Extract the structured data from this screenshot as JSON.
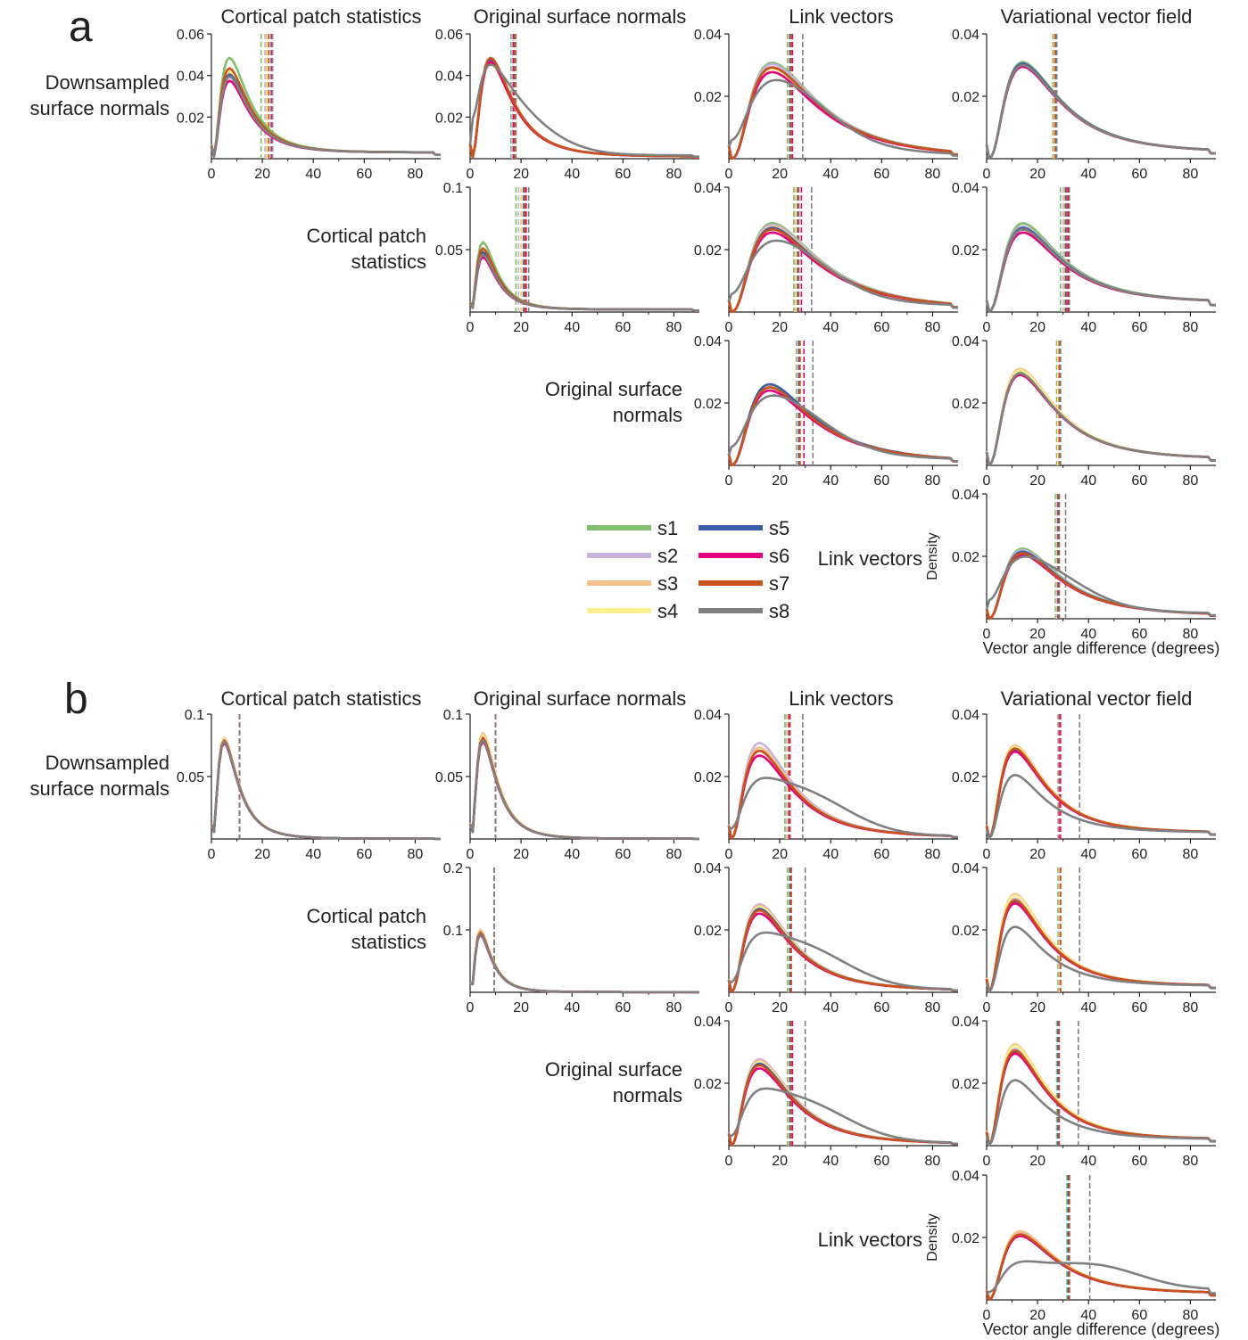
{
  "colors": {
    "s1": "#7fbf6a",
    "s2": "#c7b3dc",
    "s3": "#f7c08a",
    "s4": "#fbf08f",
    "s5": "#3a5ea8",
    "s6": "#e6007e",
    "s7": "#c8521a",
    "s8": "#808080",
    "axis": "#231f20"
  },
  "legend": {
    "entries": [
      "s1",
      "s2",
      "s3",
      "s4",
      "s5",
      "s6",
      "s7",
      "s8"
    ]
  },
  "chart_data": [
    {
      "panel_label": "a",
      "type": "line",
      "column_titles": [
        "Cortical patch statistics",
        "Original surface normals",
        "Link vectors",
        "Variational vector field"
      ],
      "row_labels": [
        "Downsampled surface normals",
        "Cortical patch statistics",
        "Original surface normals",
        "Link vectors"
      ],
      "xlabel": "Vector angle difference (degrees)",
      "ylabel": "Density",
      "xlim": [
        0,
        90
      ],
      "x_ticks": [
        0,
        20,
        40,
        60,
        80
      ],
      "subplots": [
        {
          "row": 0,
          "col": 0,
          "ylim": [
            0,
            0.06
          ],
          "y_ticks": [
            "0.02",
            "0.04",
            "0.06"
          ],
          "peak_x": 7,
          "peak_y": [
            0.047,
            0.039,
            0.04,
            0.041,
            0.039,
            0.036,
            0.042,
            0.038
          ],
          "tail_y": 0.003,
          "gray_shift": 0,
          "medians": [
            19.5,
            21,
            21.5,
            22,
            22.5,
            23.5,
            22.5,
            24
          ]
        },
        {
          "row": 0,
          "col": 1,
          "ylim": [
            0,
            0.06
          ],
          "y_ticks": [
            "0.02",
            "0.04",
            "0.06"
          ],
          "peak_x": 8,
          "peak_y": [
            0.048,
            0.047,
            0.046,
            0.045,
            0.047,
            0.046,
            0.048,
            0.044
          ],
          "tail_y": 0.001,
          "gray_shift": 1,
          "medians": [
            16,
            16.5,
            17,
            17,
            17.5,
            17,
            17.5,
            18
          ]
        },
        {
          "row": 0,
          "col": 2,
          "ylim": [
            0,
            0.04
          ],
          "y_ticks": [
            "0.02",
            "0.04"
          ],
          "peak_x": 17,
          "peak_y": [
            0.0305,
            0.03,
            0.029,
            0.0285,
            0.029,
            0.0275,
            0.029,
            0.025
          ],
          "tail_y": 0.0005,
          "gray_shift": 6,
          "medians": [
            23,
            23.5,
            23.5,
            24,
            24,
            25,
            24.5,
            29
          ]
        },
        {
          "row": 0,
          "col": 3,
          "ylim": [
            0,
            0.04
          ],
          "y_ticks": [
            "0.02",
            "0.04"
          ],
          "peak_x": 14,
          "peak_y": [
            0.03,
            0.0295,
            0.029,
            0.029,
            0.0295,
            0.0285,
            0.029,
            0.029
          ],
          "tail_y": 0.002,
          "gray_shift": 0,
          "medians": [
            26,
            26.5,
            26.5,
            27,
            27,
            27.5,
            27,
            27.5
          ]
        },
        {
          "row": 1,
          "col": 1,
          "ylim": [
            0,
            0.1
          ],
          "y_ticks": [
            "0.05",
            "0.1"
          ],
          "peak_x": 5,
          "peak_y": [
            0.055,
            0.047,
            0.048,
            0.049,
            0.047,
            0.043,
            0.05,
            0.045
          ],
          "tail_y": 0.002,
          "gray_shift": 0,
          "medians": [
            18,
            19,
            20,
            20.5,
            21,
            22,
            21.5,
            23
          ]
        },
        {
          "row": 1,
          "col": 2,
          "ylim": [
            0,
            0.04
          ],
          "y_ticks": [
            "0.02",
            "0.04"
          ],
          "peak_x": 17,
          "peak_y": [
            0.028,
            0.0275,
            0.027,
            0.0265,
            0.0265,
            0.025,
            0.026,
            0.022
          ],
          "tail_y": 0.001,
          "gray_shift": 6,
          "medians": [
            25.5,
            26,
            26,
            26.5,
            27,
            28.5,
            27.5,
            32.5
          ]
        },
        {
          "row": 1,
          "col": 3,
          "ylim": [
            0,
            0.04
          ],
          "y_ticks": [
            "0.02",
            "0.04"
          ],
          "peak_x": 14,
          "peak_y": [
            0.027,
            0.026,
            0.0255,
            0.025,
            0.0255,
            0.024,
            0.025,
            0.025
          ],
          "tail_y": 0.003,
          "gray_shift": 0,
          "medians": [
            29,
            30,
            30.5,
            31,
            31,
            32,
            31.5,
            32.5
          ]
        },
        {
          "row": 2,
          "col": 2,
          "ylim": [
            0,
            0.04
          ],
          "y_ticks": [
            "0.02",
            "0.04"
          ],
          "peak_x": 16,
          "peak_y": [
            0.0255,
            0.025,
            0.025,
            0.0245,
            0.0255,
            0.0235,
            0.0245,
            0.0215
          ],
          "tail_y": 0.001,
          "gray_shift": 6,
          "medians": [
            26.5,
            27,
            27,
            27.5,
            27.5,
            29.5,
            28,
            33
          ]
        },
        {
          "row": 2,
          "col": 3,
          "ylim": [
            0,
            0.04
          ],
          "y_ticks": [
            "0.02",
            "0.04"
          ],
          "peak_x": 13,
          "peak_y": [
            0.029,
            0.0295,
            0.03,
            0.0295,
            0.0285,
            0.028,
            0.0285,
            0.0285
          ],
          "tail_y": 0.002,
          "gray_shift": 0,
          "medians": [
            27.5,
            28,
            28,
            28,
            28.5,
            29,
            28.5,
            29
          ]
        },
        {
          "row": 3,
          "col": 3,
          "ylim": [
            0,
            0.04
          ],
          "y_ticks": [
            "0.02",
            "0.04"
          ],
          "peak_x": 14,
          "peak_y": [
            0.022,
            0.0215,
            0.021,
            0.021,
            0.021,
            0.02,
            0.0205,
            0.019
          ],
          "tail_y": 0.001,
          "gray_shift": 6,
          "medians": [
            27,
            27.5,
            27.5,
            28,
            28,
            28.5,
            28.5,
            31
          ]
        }
      ]
    },
    {
      "panel_label": "b",
      "type": "line",
      "column_titles": [
        "Cortical patch statistics",
        "Original surface normals",
        "Link vectors",
        "Variational vector field"
      ],
      "row_labels": [
        "Downsampled surface normals",
        "Cortical patch statistics",
        "Original surface normals",
        "Link vectors"
      ],
      "xlabel": "Vector angle difference (degrees)",
      "ylabel": "Density",
      "xlim": [
        0,
        90
      ],
      "x_ticks": [
        0,
        20,
        40,
        60,
        80
      ],
      "subplots": [
        {
          "row": 0,
          "col": 0,
          "ylim": [
            0,
            0.1
          ],
          "y_ticks": [
            "0.05",
            "0.1"
          ],
          "peak_x": 5,
          "peak_y": [
            0.079,
            0.08,
            0.081,
            0.08,
            0.078,
            0.077,
            0.079,
            0.078
          ],
          "tail_y": 0.0002,
          "gray_shift": 0,
          "medians": [
            11,
            11,
            11,
            11,
            11,
            11,
            11,
            11
          ]
        },
        {
          "row": 0,
          "col": 1,
          "ylim": [
            0,
            0.1
          ],
          "y_ticks": [
            "0.05",
            "0.1"
          ],
          "peak_x": 5,
          "peak_y": [
            0.08,
            0.082,
            0.085,
            0.083,
            0.08,
            0.078,
            0.081,
            0.079
          ],
          "tail_y": 0.0002,
          "gray_shift": 0,
          "medians": [
            10,
            10,
            10,
            10,
            10,
            10,
            10,
            10
          ]
        },
        {
          "row": 0,
          "col": 2,
          "ylim": [
            0,
            0.04
          ],
          "y_ticks": [
            "0.02",
            "0.04"
          ],
          "peak_x": 12,
          "peak_y": [
            0.029,
            0.0305,
            0.029,
            0.028,
            0.028,
            0.0265,
            0.028,
            0.0225
          ],
          "tail_y": 0.0005,
          "gray_shift": 18,
          "medians": [
            22,
            22.5,
            23,
            23,
            23.5,
            24,
            23.5,
            29
          ]
        },
        {
          "row": 0,
          "col": 3,
          "ylim": [
            0,
            0.04
          ],
          "y_ticks": [
            "0.02",
            "0.04"
          ],
          "peak_x": 11,
          "peak_y": [
            0.028,
            0.028,
            0.029,
            0.0285,
            0.0275,
            0.027,
            0.028,
            0.0195
          ],
          "tail_y": 0.002,
          "gray_shift": 0,
          "medians": [
            28,
            28,
            28.5,
            28.5,
            28.5,
            29,
            28.5,
            36.5
          ]
        },
        {
          "row": 1,
          "col": 1,
          "ylim": [
            0,
            0.2
          ],
          "y_ticks": [
            "0.1",
            "0.2"
          ],
          "peak_x": 4,
          "peak_y": [
            0.095,
            0.098,
            0.1,
            0.097,
            0.094,
            0.092,
            0.096,
            0.093
          ],
          "tail_y": 0.0003,
          "gray_shift": 0,
          "medians": [
            9.5,
            9.5,
            9.5,
            9.5,
            9.5,
            9.5,
            9.5,
            9.5
          ]
        },
        {
          "row": 1,
          "col": 2,
          "ylim": [
            0,
            0.04
          ],
          "y_ticks": [
            "0.02",
            "0.04"
          ],
          "peak_x": 12,
          "peak_y": [
            0.027,
            0.028,
            0.0275,
            0.027,
            0.0265,
            0.025,
            0.026,
            0.022
          ],
          "tail_y": 0.0005,
          "gray_shift": 18,
          "medians": [
            23,
            23.5,
            23.5,
            24,
            24,
            24.5,
            24.5,
            30
          ]
        },
        {
          "row": 1,
          "col": 3,
          "ylim": [
            0,
            0.04
          ],
          "y_ticks": [
            "0.02",
            "0.04"
          ],
          "peak_x": 11,
          "peak_y": [
            0.029,
            0.029,
            0.0305,
            0.03,
            0.028,
            0.0275,
            0.0285,
            0.02
          ],
          "tail_y": 0.002,
          "gray_shift": 0,
          "medians": [
            28,
            28.5,
            28.5,
            29,
            29,
            29,
            29,
            36.5
          ]
        },
        {
          "row": 2,
          "col": 2,
          "ylim": [
            0,
            0.04
          ],
          "y_ticks": [
            "0.02",
            "0.04"
          ],
          "peak_x": 12,
          "peak_y": [
            0.026,
            0.0275,
            0.027,
            0.0265,
            0.026,
            0.0245,
            0.0255,
            0.021
          ],
          "tail_y": 0.0005,
          "gray_shift": 18,
          "medians": [
            23,
            23.5,
            23.5,
            24,
            24,
            25,
            24.5,
            30
          ]
        },
        {
          "row": 2,
          "col": 3,
          "ylim": [
            0,
            0.04
          ],
          "y_ticks": [
            "0.02",
            "0.04"
          ],
          "peak_x": 11,
          "peak_y": [
            0.03,
            0.03,
            0.0315,
            0.031,
            0.029,
            0.0285,
            0.0295,
            0.02
          ],
          "tail_y": 0.002,
          "gray_shift": 0,
          "medians": [
            27.5,
            28,
            28,
            28,
            28,
            28.5,
            28.5,
            36
          ]
        },
        {
          "row": 3,
          "col": 3,
          "ylim": [
            0,
            0.04
          ],
          "y_ticks": [
            "0.02",
            "0.04"
          ],
          "peak_x": 13,
          "peak_y": [
            0.02,
            0.0205,
            0.021,
            0.02,
            0.0195,
            0.0195,
            0.02,
            0.0145
          ],
          "tail_y": 0.002,
          "gray_shift": 30,
          "medians": [
            31.5,
            32,
            32,
            32.5,
            32,
            32.5,
            32.5,
            40.5
          ]
        }
      ]
    }
  ]
}
